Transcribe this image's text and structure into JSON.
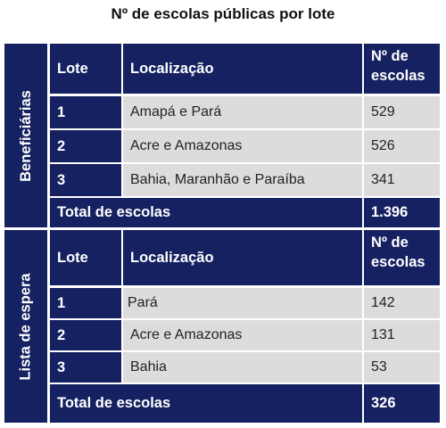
{
  "title": "Nº de escolas públicas por lote",
  "sections": [
    {
      "label": "Beneficiárias",
      "headers": [
        "Lote",
        "Localização",
        "Nº de escolas"
      ],
      "rows": [
        {
          "lote": "1",
          "localizacao": "Amapá e Pará",
          "escolas": "529"
        },
        {
          "lote": "2",
          "localizacao": "Acre e Amazonas",
          "escolas": "526"
        },
        {
          "lote": "3",
          "localizacao": "Bahia, Maranhão e Paraíba",
          "escolas": "341"
        }
      ],
      "total_label": "Total de escolas",
      "total_value": "1.396"
    },
    {
      "label": "Lista de espera",
      "headers": [
        "Lote",
        "Localização",
        "Nº de escolas"
      ],
      "rows": [
        {
          "lote": "1",
          "localizacao": "Pará",
          "escolas": "142"
        },
        {
          "lote": "2",
          "localizacao": "Acre e Amazonas",
          "escolas": "131"
        },
        {
          "lote": "3",
          "localizacao": "Bahia",
          "escolas": "53"
        }
      ],
      "total_label": "Total de escolas",
      "total_value": "326"
    }
  ],
  "colors": {
    "navy": "#152161",
    "row_grey": "#dcdcdc",
    "white": "#ffffff"
  }
}
